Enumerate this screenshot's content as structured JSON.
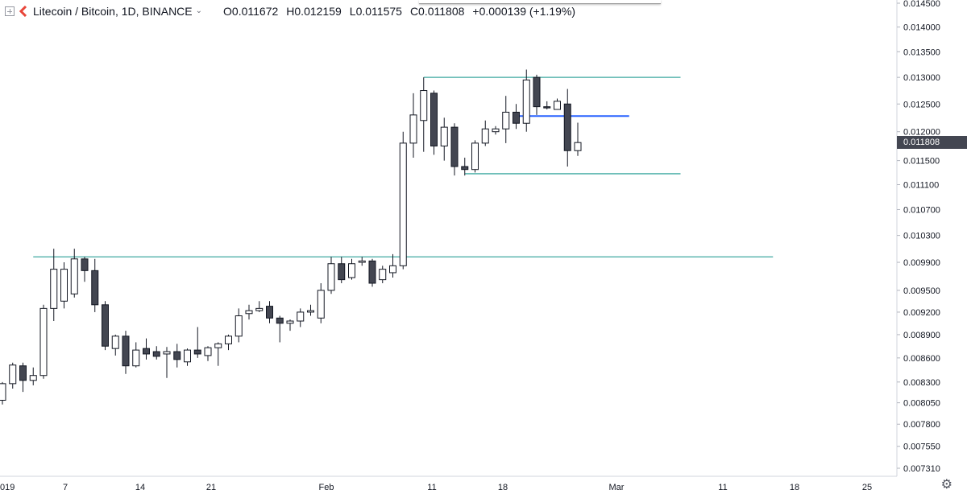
{
  "header": {
    "symbol_title": "Litecoin / Bitcoin, 1D, BINANCE",
    "ohlc": {
      "open": "O0.011672",
      "high": "H0.012159",
      "low": "L0.011575",
      "close": "C0.011808",
      "change": "+0.000139 (+1.19%)"
    }
  },
  "price_tag": "0.011808",
  "colors": {
    "up_fill": "#ffffff",
    "down_fill": "#434651",
    "candle_outline": "#131722",
    "teal_line": "#3fa9a0",
    "blue_line": "#2962ff",
    "axis_text": "#131722",
    "brand_red": "#e8463a"
  },
  "chart_data": {
    "type": "candlestick",
    "y_tick_labels": [
      "0.014500",
      "0.014000",
      "0.013500",
      "0.013000",
      "0.012500",
      "0.012000",
      "0.011500",
      "0.011100",
      "0.010700",
      "0.010300",
      "0.009900",
      "0.009500",
      "0.009200",
      "0.008900",
      "0.008600",
      "0.008300",
      "0.008050",
      "0.007800",
      "0.007550",
      "0.007310"
    ],
    "x_tick_labels": [
      "019",
      "7",
      "14",
      "21",
      "Feb",
      "11",
      "18",
      "Mar",
      "11",
      "18",
      "25"
    ],
    "y_scale": "log",
    "grid": false,
    "candles": [
      {
        "o": 0.00808,
        "h": 0.0083,
        "l": 0.00803,
        "c": 0.00828
      },
      {
        "o": 0.00828,
        "h": 0.00854,
        "l": 0.00822,
        "c": 0.00851
      },
      {
        "o": 0.0085,
        "h": 0.00854,
        "l": 0.00818,
        "c": 0.00832
      },
      {
        "o": 0.00832,
        "h": 0.00848,
        "l": 0.00826,
        "c": 0.00838
      },
      {
        "o": 0.00838,
        "h": 0.0093,
        "l": 0.00834,
        "c": 0.00925
      },
      {
        "o": 0.00925,
        "h": 0.0101,
        "l": 0.00908,
        "c": 0.0098
      },
      {
        "o": 0.00935,
        "h": 0.0099,
        "l": 0.00925,
        "c": 0.0098
      },
      {
        "o": 0.00945,
        "h": 0.0101,
        "l": 0.0094,
        "c": 0.00995
      },
      {
        "o": 0.00995,
        "h": 0.00998,
        "l": 0.00962,
        "c": 0.00978
      },
      {
        "o": 0.00978,
        "h": 0.00995,
        "l": 0.0092,
        "c": 0.0093
      },
      {
        "o": 0.0093,
        "h": 0.00935,
        "l": 0.0087,
        "c": 0.00875
      },
      {
        "o": 0.00872,
        "h": 0.0089,
        "l": 0.00863,
        "c": 0.00888
      },
      {
        "o": 0.00888,
        "h": 0.00895,
        "l": 0.0084,
        "c": 0.0085
      },
      {
        "o": 0.0085,
        "h": 0.0088,
        "l": 0.00848,
        "c": 0.0087
      },
      {
        "o": 0.00872,
        "h": 0.00885,
        "l": 0.00858,
        "c": 0.00865
      },
      {
        "o": 0.00868,
        "h": 0.00875,
        "l": 0.00858,
        "c": 0.00862
      },
      {
        "o": 0.00865,
        "h": 0.00874,
        "l": 0.00835,
        "c": 0.00868
      },
      {
        "o": 0.00868,
        "h": 0.00878,
        "l": 0.00848,
        "c": 0.00858
      },
      {
        "o": 0.00855,
        "h": 0.00872,
        "l": 0.0085,
        "c": 0.0087
      },
      {
        "o": 0.0087,
        "h": 0.009,
        "l": 0.0086,
        "c": 0.00865
      },
      {
        "o": 0.00863,
        "h": 0.00875,
        "l": 0.00856,
        "c": 0.00873
      },
      {
        "o": 0.00873,
        "h": 0.0088,
        "l": 0.0085,
        "c": 0.00878
      },
      {
        "o": 0.00878,
        "h": 0.0089,
        "l": 0.0087,
        "c": 0.00888
      },
      {
        "o": 0.00888,
        "h": 0.00925,
        "l": 0.0088,
        "c": 0.00915
      },
      {
        "o": 0.00918,
        "h": 0.0093,
        "l": 0.0091,
        "c": 0.00922
      },
      {
        "o": 0.00922,
        "h": 0.00935,
        "l": 0.0092,
        "c": 0.00925
      },
      {
        "o": 0.00928,
        "h": 0.00935,
        "l": 0.00905,
        "c": 0.00912
      },
      {
        "o": 0.00912,
        "h": 0.00915,
        "l": 0.0088,
        "c": 0.00905
      },
      {
        "o": 0.00905,
        "h": 0.0091,
        "l": 0.00895,
        "c": 0.00908
      },
      {
        "o": 0.00908,
        "h": 0.00925,
        "l": 0.009,
        "c": 0.0092
      },
      {
        "o": 0.0092,
        "h": 0.0093,
        "l": 0.00915,
        "c": 0.00922
      },
      {
        "o": 0.00912,
        "h": 0.0096,
        "l": 0.00905,
        "c": 0.0095
      },
      {
        "o": 0.0095,
        "h": 0.00998,
        "l": 0.00945,
        "c": 0.00988
      },
      {
        "o": 0.00988,
        "h": 0.00998,
        "l": 0.0096,
        "c": 0.00965
      },
      {
        "o": 0.00968,
        "h": 0.00995,
        "l": 0.00965,
        "c": 0.00988
      },
      {
        "o": 0.0099,
        "h": 0.00998,
        "l": 0.00985,
        "c": 0.00992
      },
      {
        "o": 0.00992,
        "h": 0.00995,
        "l": 0.00955,
        "c": 0.0096
      },
      {
        "o": 0.00965,
        "h": 0.00985,
        "l": 0.0096,
        "c": 0.0098
      },
      {
        "o": 0.00975,
        "h": 0.01002,
        "l": 0.00968,
        "c": 0.00985
      },
      {
        "o": 0.00985,
        "h": 0.012,
        "l": 0.0098,
        "c": 0.0118
      },
      {
        "o": 0.0118,
        "h": 0.0127,
        "l": 0.01155,
        "c": 0.0123
      },
      {
        "o": 0.0122,
        "h": 0.013,
        "l": 0.01165,
        "c": 0.01275
      },
      {
        "o": 0.0127,
        "h": 0.01275,
        "l": 0.0116,
        "c": 0.01175
      },
      {
        "o": 0.01175,
        "h": 0.01225,
        "l": 0.0115,
        "c": 0.01208
      },
      {
        "o": 0.01208,
        "h": 0.01215,
        "l": 0.01125,
        "c": 0.0114
      },
      {
        "o": 0.0114,
        "h": 0.01155,
        "l": 0.01125,
        "c": 0.01135
      },
      {
        "o": 0.01135,
        "h": 0.01185,
        "l": 0.0113,
        "c": 0.0118
      },
      {
        "o": 0.0118,
        "h": 0.0122,
        "l": 0.01175,
        "c": 0.01205
      },
      {
        "o": 0.012,
        "h": 0.0121,
        "l": 0.01195,
        "c": 0.01205
      },
      {
        "o": 0.01205,
        "h": 0.01265,
        "l": 0.0118,
        "c": 0.01235
      },
      {
        "o": 0.01235,
        "h": 0.0125,
        "l": 0.01205,
        "c": 0.01215
      },
      {
        "o": 0.01215,
        "h": 0.01315,
        "l": 0.012,
        "c": 0.01295
      },
      {
        "o": 0.013,
        "h": 0.01305,
        "l": 0.0123,
        "c": 0.01245
      },
      {
        "o": 0.01245,
        "h": 0.01255,
        "l": 0.0124,
        "c": 0.01243
      },
      {
        "o": 0.0124,
        "h": 0.0126,
        "l": 0.0124,
        "c": 0.01255
      },
      {
        "o": 0.0125,
        "h": 0.01278,
        "l": 0.0114,
        "c": 0.01167
      },
      {
        "o": 0.01167,
        "h": 0.01216,
        "l": 0.01158,
        "c": 0.01181
      }
    ],
    "horizontal_lines": [
      {
        "price": 0.013,
        "color": "teal",
        "start_candle": 41,
        "end_candle": 66
      },
      {
        "price": 0.01128,
        "color": "teal",
        "start_candle": 45,
        "end_candle": 66
      },
      {
        "price": 0.01228,
        "color": "blue",
        "start_candle": 50,
        "end_candle": 61
      },
      {
        "price": 0.00998,
        "color": "teal",
        "start_candle": 3,
        "end_candle": 75
      }
    ]
  }
}
